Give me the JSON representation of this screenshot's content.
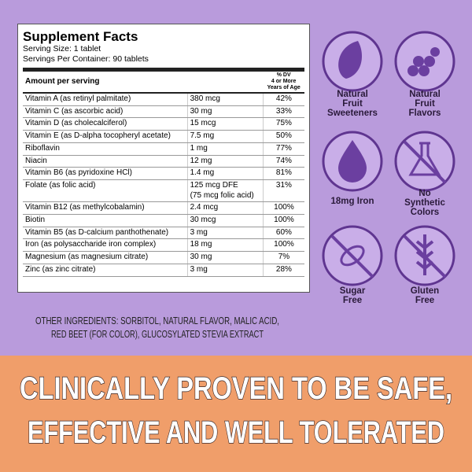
{
  "supplement_facts": {
    "title": "Supplement Facts",
    "serving_size": "Serving Size: 1 tablet",
    "servings_per_container": "Servings Per Container: 90 tablets",
    "header": {
      "amount": "Amount per serving",
      "dv": [
        "% DV",
        "4 or More",
        "Years of Age"
      ]
    },
    "rows": [
      [
        "Vitamin A (as retinyl palmitate)",
        [
          "380 mcg"
        ],
        "42%"
      ],
      [
        "Vitamin C (as ascorbic acid)",
        [
          "30 mg"
        ],
        "33%"
      ],
      [
        "Vitamin D (as cholecalciferol)",
        [
          "15 mcg"
        ],
        "75%"
      ],
      [
        "Vitamin E (as D-alpha tocopheryl acetate)",
        [
          "7.5 mg"
        ],
        "50%"
      ],
      [
        "Riboflavin",
        [
          "1 mg"
        ],
        "77%"
      ],
      [
        "Niacin",
        [
          "12 mg"
        ],
        "74%"
      ],
      [
        "Vitamin B6 (as pyridoxine HCl)",
        [
          "1.4 mg"
        ],
        "81%"
      ],
      [
        "Folate (as folic acid)",
        [
          "125 mcg DFE",
          "(75 mcg folic acid)"
        ],
        "31%"
      ],
      [
        "Vitamin B12 (as methylcobalamin)",
        [
          "2.4 mcg"
        ],
        "100%"
      ],
      [
        "Biotin",
        [
          "30 mcg"
        ],
        "100%"
      ],
      [
        "Vitamin B5 (as D-calcium panthothenate)",
        [
          "3 mg"
        ],
        "60%"
      ],
      [
        "Iron (as polysaccharide iron complex)",
        [
          "18 mg"
        ],
        "100%"
      ],
      [
        "Magnesium (as magnesium citrate)",
        [
          "30 mg"
        ],
        "7%"
      ],
      [
        "Zinc (as zinc citrate)",
        [
          "3 mg"
        ],
        "28%"
      ]
    ]
  },
  "other_ingredients": [
    "OTHER INGREDIENTS: SORBITOL, NATURAL FLAVOR, MALIC ACID,",
    "RED BEET (FOR COLOR), GLUCOSYLATED STEVIA EXTRACT"
  ],
  "badges": [
    [
      "Natural",
      "Fruit",
      "Sweeteners"
    ],
    [
      "Natural",
      "Fruit",
      "Flavors"
    ],
    [
      "18mg Iron"
    ],
    [
      "No",
      "Synthetic",
      "Colors"
    ],
    [
      "Sugar",
      "Free"
    ],
    [
      "Gluten",
      "Free"
    ]
  ],
  "banner": [
    "CLINICALLY PROVEN TO BE SAFE,",
    "EFFECTIVE AND WELL TOLERATED"
  ]
}
